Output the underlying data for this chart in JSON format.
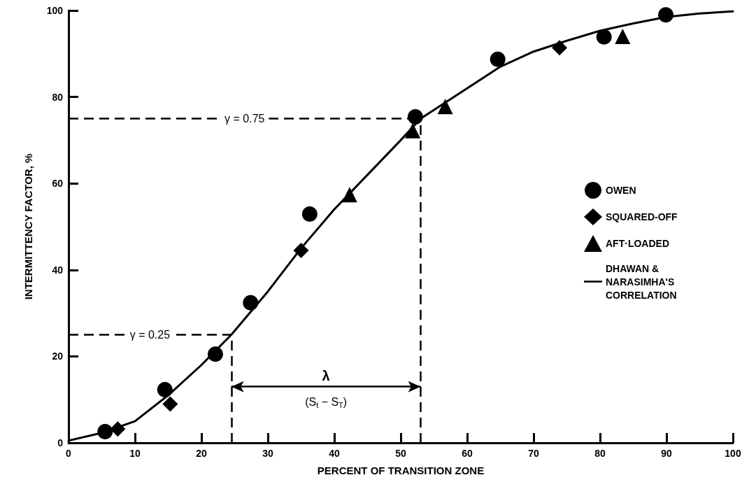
{
  "chart_data": {
    "type": "scatter",
    "xlabel": "PERCENT OF TRANSITION ZONE",
    "ylabel": "INTERMITTENCY FACTOR, %",
    "xlim": [
      0,
      100
    ],
    "xticks": [
      0,
      10,
      20,
      30,
      40,
      50,
      60,
      70,
      80,
      90,
      100
    ],
    "ylim": [
      0,
      100
    ],
    "yticks": [
      0,
      20,
      40,
      60,
      80,
      100
    ],
    "grid": false,
    "legend": "right",
    "series": [
      {
        "name": "OWEN",
        "color": "#000000",
        "marker": "circle",
        "x": [
          5.5,
          14.5,
          22.1,
          27.4,
          36.3,
          52.2,
          64.6,
          80.6,
          89.9
        ],
        "values": [
          2.6,
          12.3,
          20.5,
          32.4,
          52.9,
          75.4,
          88.7,
          93.9,
          99.0
        ]
      },
      {
        "name": "SQUARED-OFF",
        "color": "#000000",
        "marker": "diamond",
        "x": [
          7.4,
          15.3,
          35.0,
          73.9
        ],
        "values": [
          3.2,
          9.0,
          44.5,
          91.4
        ]
      },
      {
        "name": "AFT·LOADED",
        "color": "#000000",
        "marker": "triangle",
        "x": [
          42.3,
          51.8,
          56.7,
          83.4
        ],
        "values": [
          57.4,
          72.2,
          77.8,
          94.0
        ]
      },
      {
        "name": "DHAWAN & NARASIMHA'S CORRELATION",
        "type": "line",
        "color": "#000000",
        "marker": "none",
        "line_style": "solid",
        "x": [
          0,
          5,
          10,
          15,
          20,
          24.5,
          30,
          35,
          40,
          45,
          50,
          53,
          60,
          65,
          70,
          75,
          80,
          85,
          90,
          95,
          100
        ],
        "values": [
          0.5,
          2.3,
          5,
          11,
          18,
          25,
          35,
          45,
          54,
          62,
          70,
          75,
          82,
          87,
          90.5,
          93,
          95.3,
          97,
          98.5,
          99.3,
          99.8
        ]
      }
    ],
    "ref_lines": [
      {
        "axis": "y",
        "value": 75,
        "line_style": "dashed",
        "color": "#000000"
      },
      {
        "axis": "y",
        "value": 25,
        "line_style": "dashed",
        "color": "#000000"
      },
      {
        "axis": "x",
        "value": 24.5,
        "line_style": "dashed",
        "color": "#000000"
      },
      {
        "axis": "x",
        "value": 53,
        "line_style": "dashed",
        "color": "#000000"
      }
    ],
    "annotations": [
      "γ = 0.75",
      "γ = 0.25",
      "λ",
      "(S$_{t}$ − S$_{T}$)"
    ]
  }
}
